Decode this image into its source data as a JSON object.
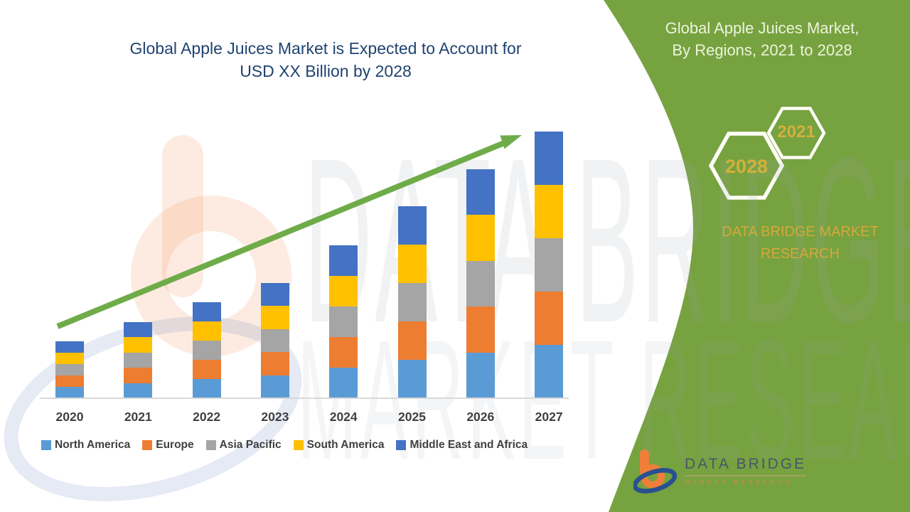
{
  "title": {
    "line1": "Global Apple Juices Market is Expected to Account for",
    "line2": "USD XX Billion by 2028",
    "color": "#1F4370"
  },
  "side_panel": {
    "background_color": "#77A240",
    "heading_line1": "Global Apple Juices Market,",
    "heading_line2": "By Regions, 2021 to 2028",
    "hexagons": [
      {
        "label": "2028"
      },
      {
        "label": "2021"
      }
    ],
    "hexagon_text_color": "#D2B13C",
    "brand_text": "DATA BRIDGE MARKET RESEARCH",
    "brand_text_color": "#D4A93C"
  },
  "watermark": {
    "line1": "DATA BRIDGE",
    "line2": "MARKET RESEARCH"
  },
  "chart_data": {
    "type": "bar",
    "stacked": true,
    "title": "",
    "xlabel": "",
    "ylabel": "",
    "value_axis_labels_visible": false,
    "note_units": "relative heights (no value axis shown in source)",
    "categories": [
      "2020",
      "2021",
      "2022",
      "2023",
      "2024",
      "2025",
      "2026",
      "2027"
    ],
    "series": [
      {
        "name": "North America",
        "color": "#5B9BD5",
        "values": [
          16,
          21.5,
          27,
          32.5,
          43,
          54,
          64.5,
          75
        ]
      },
      {
        "name": "Europe",
        "color": "#ED7D31",
        "values": [
          16,
          21.5,
          27,
          32.5,
          43,
          54,
          64.5,
          75
        ]
      },
      {
        "name": "Asia Pacific",
        "color": "#A5A5A5",
        "values": [
          16,
          21.5,
          27,
          32.5,
          43,
          54,
          64.5,
          75
        ]
      },
      {
        "name": "South America",
        "color": "#FFC000",
        "values": [
          16,
          21.5,
          27,
          32.5,
          43,
          54,
          64.5,
          75
        ]
      },
      {
        "name": "Middle East and Africa",
        "color": "#4472C4",
        "values": [
          16,
          21.5,
          27,
          32.5,
          43,
          54,
          64.5,
          75
        ]
      }
    ],
    "totals": [
      80,
      107.5,
      135,
      162.5,
      215,
      270,
      322.5,
      375
    ],
    "legend_position": "bottom",
    "trend_arrow_color": "#6FAC49",
    "grid": false
  },
  "footer_logo": {
    "name": "DATA BRIDGE",
    "subtitle": "MARKET RESEARCH"
  }
}
